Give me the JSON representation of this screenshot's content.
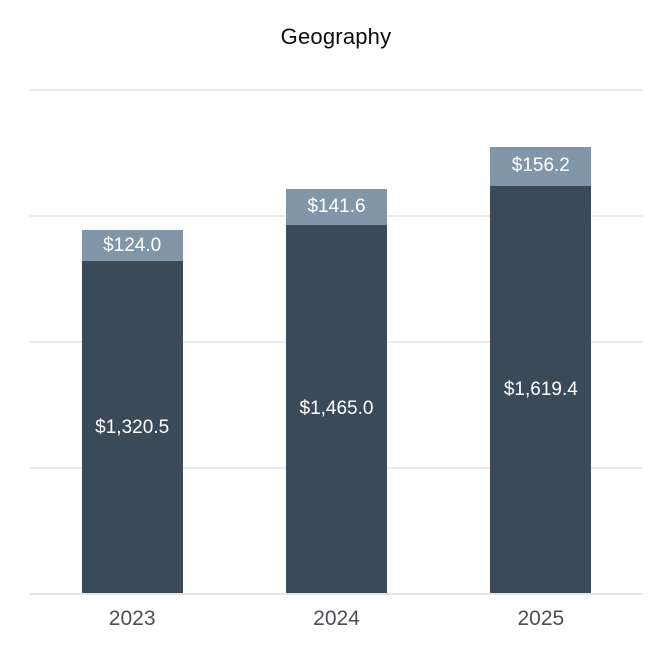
{
  "chart_data": {
    "type": "bar",
    "stacked": true,
    "title": "Geography",
    "categories": [
      "2023",
      "2024",
      "2025"
    ],
    "series": [
      {
        "name": "bottom-segment",
        "color": "#3b4a59",
        "values": [
          1320.5,
          1465.0,
          1619.4
        ],
        "labels": [
          "$1,320.5",
          "$1,465.0",
          "$1,619.4"
        ]
      },
      {
        "name": "top-segment",
        "color": "#8296a9",
        "values": [
          124.0,
          141.6,
          156.2
        ],
        "labels": [
          "$124.0",
          "$141.6",
          "$156.2"
        ]
      }
    ],
    "totals": [
      1444.5,
      1606.6,
      1775.6
    ],
    "ylim": [
      0,
      2000
    ],
    "gridline_values": [
      0,
      500,
      1000,
      1500,
      2000
    ],
    "grid": true,
    "legend": false,
    "value_label_color": "#ffffff",
    "axis_label_color": "#4b4f54",
    "gridline_color": "#ebebeb",
    "background": "#ffffff"
  }
}
